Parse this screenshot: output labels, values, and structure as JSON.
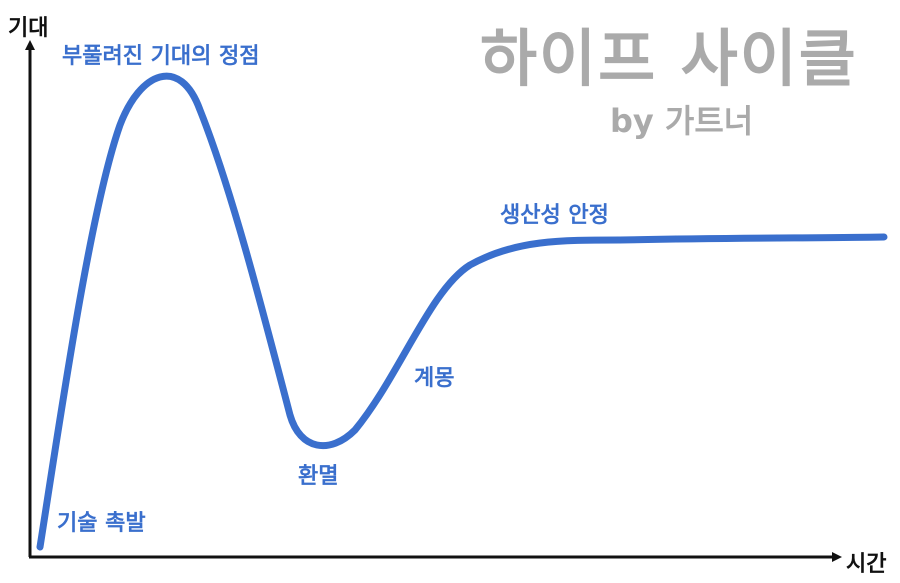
{
  "title": "하이프 사이클",
  "subtitle": "by 가트너",
  "axes": {
    "y_label": "기대",
    "x_label": "시간"
  },
  "phases": [
    {
      "name": "기술 촉발"
    },
    {
      "name": "부풀려진 기대의 정점"
    },
    {
      "name": "환멸"
    },
    {
      "name": "계몽"
    },
    {
      "name": "생산성 안정"
    }
  ],
  "colors": {
    "curve": "#3a6fcd",
    "axis": "#111111",
    "title": "#aaaaaa"
  }
}
